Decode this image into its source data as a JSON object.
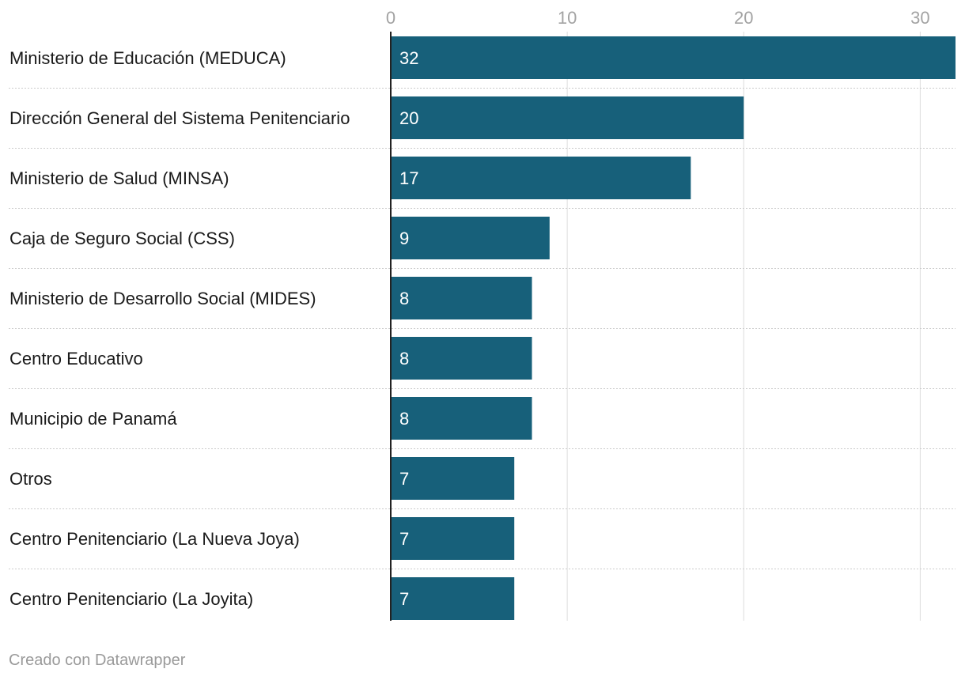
{
  "chart_data": {
    "type": "bar",
    "orientation": "horizontal",
    "categories": [
      "Ministerio de Educación (MEDUCA)",
      "Dirección General del Sistema Penitenciario",
      "Ministerio de Salud (MINSA)",
      "Caja de Seguro Social (CSS)",
      "Ministerio de Desarrollo Social (MIDES)",
      "Centro Educativo",
      "Municipio de Panamá",
      "Otros",
      "Centro Penitenciario (La Nueva Joya)",
      "Centro Penitenciario (La Joyita)"
    ],
    "values": [
      32,
      20,
      17,
      9,
      8,
      8,
      8,
      7,
      7,
      7
    ],
    "data_labels": [
      "32",
      "20",
      "17",
      "9",
      "8",
      "8",
      "8",
      "7",
      "7",
      "7"
    ],
    "x_ticks": [
      0,
      10,
      20,
      30
    ],
    "x_tick_labels": [
      "0",
      "10",
      "20",
      "30"
    ],
    "xlim": [
      0,
      32
    ],
    "title": "",
    "xlabel": "",
    "ylabel": "",
    "grid": true,
    "legend": "none",
    "colors": {
      "bar": "#17607a",
      "bar_label": "#ffffff",
      "category_label": "#1a1a1a",
      "tick_label": "#a3a3a3",
      "gridline": "#dddddd",
      "row_separator": "#cccccc",
      "axis_line": "#222222"
    }
  },
  "footer": {
    "credit": "Creado con Datawrapper"
  }
}
